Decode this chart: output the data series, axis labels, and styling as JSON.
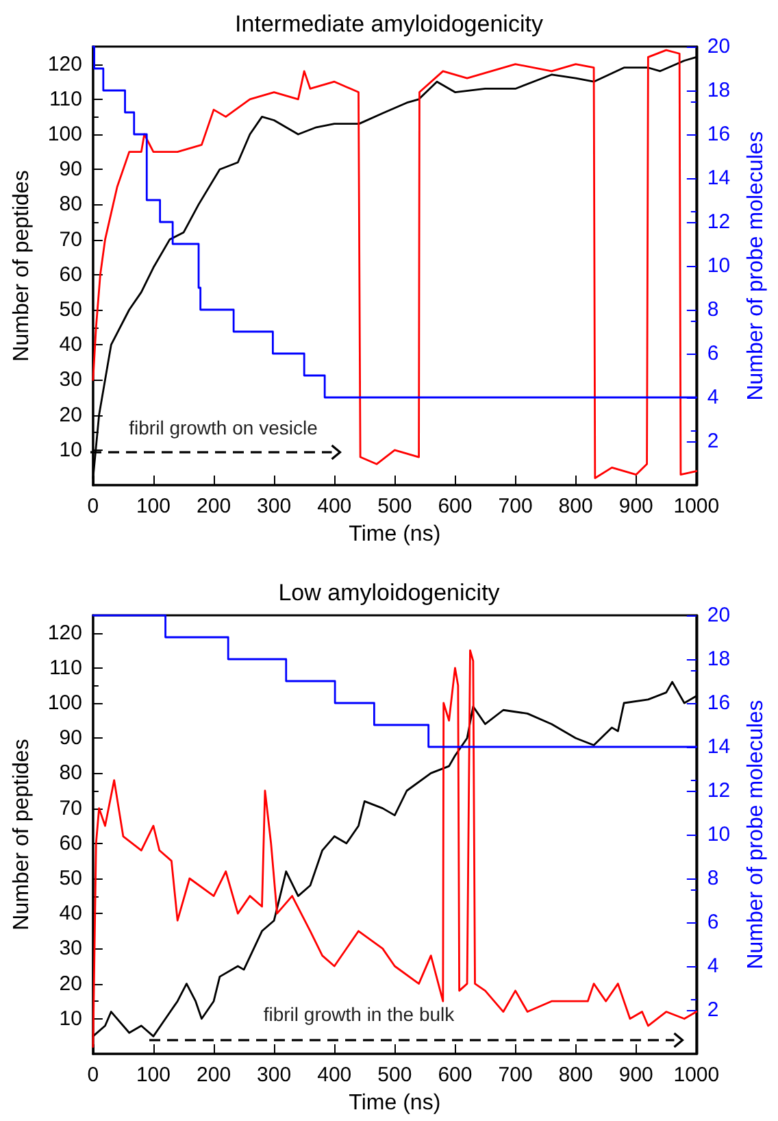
{
  "chart_data": [
    {
      "type": "line",
      "title": "Intermediate amyloidogenicity",
      "xlabel": "Time (ns)",
      "ylabel": "Number of peptides",
      "y2label": "Number of probe molecules",
      "xlim": [
        0,
        1000
      ],
      "xticks": [
        0,
        100,
        200,
        300,
        400,
        500,
        600,
        700,
        800,
        900,
        1000
      ],
      "ylim": [
        0,
        125
      ],
      "yticks": [
        10,
        20,
        30,
        40,
        50,
        60,
        70,
        80,
        90,
        100,
        110,
        120
      ],
      "y2lim": [
        0,
        20
      ],
      "y2ticks": [
        2,
        4,
        6,
        8,
        10,
        12,
        14,
        16,
        18,
        20
      ],
      "grid": false,
      "marker": "none",
      "line_style": "solid",
      "annotations": [
        "fibril growth on vesicle"
      ],
      "series": [
        {
          "color": "#000000",
          "x": [
            0,
            10,
            30,
            60,
            80,
            100,
            127,
            150,
            175,
            210,
            240,
            260,
            280,
            300,
            340,
            370,
            400,
            441,
            480,
            520,
            540,
            570,
            600,
            650,
            700,
            760,
            800,
            830,
            880,
            920,
            940,
            980,
            1000
          ],
          "values": [
            2,
            20,
            40,
            50,
            55,
            62,
            70,
            72,
            80,
            90,
            92,
            100,
            105,
            104,
            100,
            102,
            103,
            103,
            106,
            109,
            110,
            115,
            112,
            113,
            113,
            117,
            116,
            115,
            119,
            119,
            118,
            121,
            122
          ]
        },
        {
          "color": "#ff0000",
          "x": [
            0,
            5,
            12,
            20,
            40,
            60,
            80,
            85,
            100,
            140,
            180,
            200,
            220,
            260,
            300,
            340,
            350,
            360,
            400,
            440,
            443,
            470,
            500,
            540,
            541,
            580,
            620,
            700,
            760,
            800,
            830,
            832,
            860,
            900,
            918,
            920,
            950,
            972,
            974,
            1000
          ],
          "values": [
            30,
            45,
            60,
            70,
            85,
            95,
            95,
            100,
            95,
            95,
            97,
            107,
            105,
            110,
            112,
            110,
            118,
            113,
            115,
            112,
            8,
            6,
            10,
            8,
            112,
            118,
            116,
            120,
            118,
            120,
            119,
            2,
            5,
            3,
            6,
            122,
            124,
            123,
            3,
            4
          ]
        },
        {
          "type": "step",
          "axis": "y2",
          "color": "#0000ff",
          "x": [
            0,
            2,
            17,
            53,
            68,
            89,
            111,
            132,
            175,
            178,
            233,
            298,
            350,
            384,
            1000
          ],
          "values": [
            20,
            19,
            18,
            17,
            16,
            13,
            12,
            11,
            9,
            8,
            7,
            6,
            5,
            4,
            4
          ]
        }
      ]
    },
    {
      "type": "line",
      "title": "Low amyloidogenicity",
      "xlabel": "Time (ns)",
      "ylabel": "Number of peptides",
      "y2label": "Number of probe molecules",
      "xlim": [
        0,
        1000
      ],
      "xticks": [
        0,
        100,
        200,
        300,
        400,
        500,
        600,
        700,
        800,
        900,
        1000
      ],
      "ylim": [
        0,
        125
      ],
      "yticks": [
        10,
        20,
        30,
        40,
        50,
        60,
        70,
        80,
        90,
        100,
        110,
        120
      ],
      "y2lim": [
        0,
        20
      ],
      "y2ticks": [
        2,
        4,
        6,
        8,
        10,
        12,
        14,
        16,
        18,
        20
      ],
      "grid": false,
      "marker": "none",
      "line_style": "solid",
      "annotations": [
        "fibril growth in the bulk"
      ],
      "series": [
        {
          "color": "#000000",
          "x": [
            0,
            20,
            30,
            60,
            80,
            100,
            120,
            140,
            155,
            170,
            180,
            200,
            210,
            240,
            250,
            280,
            300,
            310,
            320,
            340,
            360,
            380,
            400,
            420,
            440,
            450,
            480,
            500,
            520,
            560,
            590,
            600,
            620,
            630,
            650,
            680,
            720,
            760,
            800,
            830,
            860,
            870,
            880,
            920,
            950,
            960,
            980,
            1000
          ],
          "values": [
            5,
            8,
            12,
            6,
            8,
            5,
            10,
            15,
            20,
            15,
            10,
            15,
            22,
            25,
            24,
            35,
            38,
            45,
            52,
            45,
            48,
            58,
            62,
            60,
            65,
            72,
            70,
            68,
            75,
            80,
            82,
            85,
            90,
            99,
            94,
            98,
            97,
            94,
            90,
            88,
            93,
            92,
            100,
            101,
            103,
            106,
            100,
            102
          ]
        },
        {
          "color": "#ff0000",
          "x": [
            0,
            5,
            10,
            20,
            35,
            50,
            80,
            100,
            110,
            130,
            140,
            160,
            200,
            220,
            240,
            260,
            280,
            285,
            295,
            305,
            330,
            360,
            380,
            400,
            440,
            480,
            500,
            540,
            560,
            580,
            581,
            590,
            600,
            605,
            607,
            620,
            625,
            630,
            633,
            650,
            680,
            700,
            720,
            760,
            820,
            830,
            850,
            870,
            890,
            910,
            920,
            950,
            980,
            1000
          ],
          "values": [
            2,
            60,
            70,
            65,
            78,
            62,
            58,
            65,
            58,
            55,
            38,
            50,
            45,
            52,
            40,
            45,
            42,
            75,
            60,
            40,
            45,
            35,
            28,
            25,
            35,
            30,
            25,
            20,
            28,
            15,
            100,
            95,
            110,
            105,
            18,
            20,
            115,
            112,
            20,
            18,
            12,
            18,
            12,
            15,
            15,
            20,
            15,
            20,
            10,
            12,
            8,
            12,
            10,
            12
          ]
        },
        {
          "type": "step",
          "axis": "y2",
          "color": "#0000ff",
          "x": [
            0,
            120,
            224,
            320,
            401,
            466,
            556,
            1000
          ],
          "values": [
            20,
            19,
            18,
            17,
            16,
            15,
            14,
            14
          ]
        }
      ]
    }
  ]
}
